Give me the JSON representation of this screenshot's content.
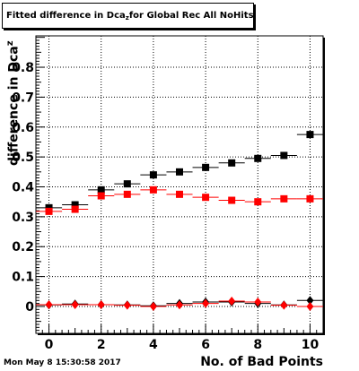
{
  "chart_data": {
    "type": "scatter",
    "title_main": "Fitted difference in Dca",
    "title_sub": "z",
    "title_rest": " for Global Rec All NoHits",
    "xlabel": "No. of Bad Points",
    "ylabel_main": "difference in Dca",
    "ylabel_sup": "z",
    "xlim": [
      -0.5,
      10.5
    ],
    "ylim": [
      -0.09,
      0.905
    ],
    "xticks": [
      0,
      2,
      4,
      6,
      8,
      10
    ],
    "yticks": [
      0,
      0.1,
      0.2,
      0.3,
      0.4,
      0.5,
      0.6,
      0.7,
      0.8
    ],
    "ytick_labels": [
      "0",
      "0.1",
      "0.2",
      "0.3",
      "0.4",
      "0.5",
      "0.6",
      "0.7",
      "0.8"
    ],
    "grid": true,
    "series": [
      {
        "marker": "square",
        "color": "#000000",
        "x": [
          0,
          1,
          2,
          3,
          4,
          5,
          6,
          7,
          8,
          9,
          10
        ],
        "y": [
          0.33,
          0.34,
          0.39,
          0.41,
          0.44,
          0.45,
          0.465,
          0.48,
          0.495,
          0.505,
          0.575
        ]
      },
      {
        "marker": "square",
        "color": "#ff0000",
        "x": [
          0,
          1,
          2,
          3,
          4,
          5,
          6,
          7,
          8,
          9,
          10
        ],
        "y": [
          0.318,
          0.325,
          0.37,
          0.375,
          0.39,
          0.375,
          0.365,
          0.355,
          0.35,
          0.36,
          0.36
        ]
      },
      {
        "marker": "diamond",
        "color": "#000000",
        "x": [
          0,
          1,
          2,
          3,
          4,
          5,
          6,
          7,
          8,
          9,
          10
        ],
        "y": [
          0.005,
          0.008,
          0.006,
          0.005,
          0.002,
          0.01,
          0.015,
          0.015,
          0.01,
          0.005,
          0.02
        ]
      },
      {
        "marker": "diamond",
        "color": "#ff0000",
        "x": [
          0,
          1,
          2,
          3,
          4,
          5,
          6,
          7,
          8,
          9,
          10
        ],
        "y": [
          0.006,
          0.006,
          0.006,
          0.004,
          0.0,
          0.005,
          0.01,
          0.018,
          0.015,
          0.004,
          0.0
        ]
      }
    ]
  },
  "footer": {
    "timestamp": "Mon May  8 15:30:58 2017"
  }
}
